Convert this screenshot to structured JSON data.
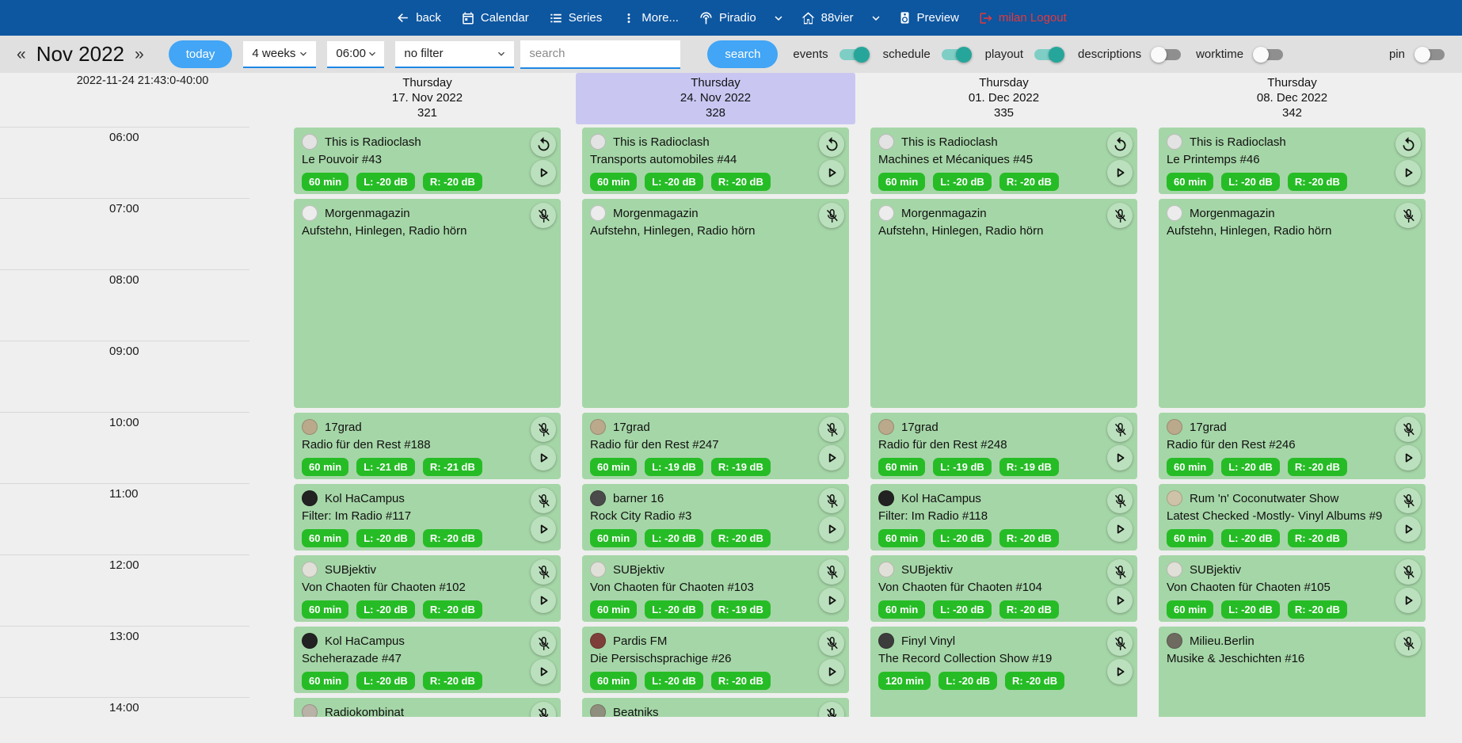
{
  "nav": {
    "back": "back",
    "calendar": "Calendar",
    "series": "Series",
    "more": "More...",
    "piradio": "Piradio",
    "station": "88vier",
    "preview": "Preview",
    "logout": "milan Logout"
  },
  "toolbar": {
    "prev": "«",
    "month": "Nov 2022",
    "next": "»",
    "today": "today",
    "range": "4 weeks",
    "start_time": "06:00",
    "filter": "no filter",
    "search_placeholder": "search",
    "search_button": "search",
    "toggles": [
      {
        "label": "events",
        "on": true
      },
      {
        "label": "schedule",
        "on": true
      },
      {
        "label": "playout",
        "on": true
      },
      {
        "label": "descriptions",
        "on": false
      },
      {
        "label": "worktime",
        "on": false
      },
      {
        "label": "pin",
        "on": false
      }
    ]
  },
  "timebar": {
    "now": "2022-11-24 21:43:0-40:00",
    "hours": [
      "06:00",
      "07:00",
      "08:00",
      "09:00",
      "10:00",
      "11:00",
      "12:00",
      "13:00",
      "14:00"
    ]
  },
  "columns": [
    {
      "day": "Thursday",
      "date": "17. Nov 2022",
      "num": "321",
      "highlight": false,
      "events": [
        {
          "show": "This is Radioclash",
          "title": "Le Pouvoir #43",
          "start": 6,
          "dur": 1,
          "badges": [
            "60 min",
            "L: -20 dB",
            "R: -20 dB"
          ],
          "icons": [
            "replay",
            "play"
          ],
          "avatar": "#e3e3e3"
        },
        {
          "show": "Morgenmagazin",
          "title": "Aufstehn, Hinlegen, Radio hörn",
          "start": 7,
          "dur": 3,
          "badges": [],
          "icons": [
            "mic-off"
          ],
          "avatar": "#ececec"
        },
        {
          "show": "17grad",
          "title": "Radio für den Rest #188",
          "start": 10,
          "dur": 1,
          "badges": [
            "60 min",
            "L: -21 dB",
            "R: -21 dB"
          ],
          "icons": [
            "mic-off",
            "play"
          ],
          "avatar": "#bba98c"
        },
        {
          "show": "Kol HaCampus",
          "title": "Filter: Im Radio #117",
          "start": 11,
          "dur": 1,
          "badges": [
            "60 min",
            "L: -20 dB",
            "R: -20 dB"
          ],
          "icons": [
            "mic-off",
            "play"
          ],
          "avatar": "#222222"
        },
        {
          "show": "SUBjektiv",
          "title": "Von Chaoten für Chaoten #102",
          "start": 12,
          "dur": 1,
          "badges": [
            "60 min",
            "L: -20 dB",
            "R: -20 dB"
          ],
          "icons": [
            "mic-off",
            "play"
          ],
          "avatar": "#e0e0d8"
        },
        {
          "show": "Kol HaCampus",
          "title": "Scheherazade #47",
          "start": 13,
          "dur": 1,
          "badges": [
            "60 min",
            "L: -20 dB",
            "R: -20 dB"
          ],
          "icons": [
            "mic-off",
            "play"
          ],
          "avatar": "#222222"
        },
        {
          "show": "Radiokombinat",
          "title": "",
          "start": 14,
          "dur": 1,
          "badges": [],
          "icons": [
            "mic-off"
          ],
          "avatar": "#b9b2a6"
        }
      ]
    },
    {
      "day": "Thursday",
      "date": "24. Nov 2022",
      "num": "328",
      "highlight": true,
      "events": [
        {
          "show": "This is Radioclash",
          "title": "Transports automobiles #44",
          "start": 6,
          "dur": 1,
          "badges": [
            "60 min",
            "L: -20 dB",
            "R: -20 dB"
          ],
          "icons": [
            "replay",
            "play"
          ],
          "avatar": "#e3e3e3"
        },
        {
          "show": "Morgenmagazin",
          "title": "Aufstehn, Hinlegen, Radio hörn",
          "start": 7,
          "dur": 3,
          "badges": [],
          "icons": [
            "mic-off"
          ],
          "avatar": "#ececec"
        },
        {
          "show": "17grad",
          "title": "Radio für den Rest #247",
          "start": 10,
          "dur": 1,
          "badges": [
            "60 min",
            "L: -19 dB",
            "R: -19 dB"
          ],
          "icons": [
            "mic-off",
            "play"
          ],
          "avatar": "#bba98c"
        },
        {
          "show": "barner 16",
          "title": "Rock City Radio #3",
          "start": 11,
          "dur": 1,
          "badges": [
            "60 min",
            "L: -20 dB",
            "R: -20 dB"
          ],
          "icons": [
            "mic-off",
            "play"
          ],
          "avatar": "#4a4a4a"
        },
        {
          "show": "SUBjektiv",
          "title": "Von Chaoten für Chaoten #103",
          "start": 12,
          "dur": 1,
          "badges": [
            "60 min",
            "L: -20 dB",
            "R: -19 dB"
          ],
          "icons": [
            "mic-off",
            "play"
          ],
          "avatar": "#e0e0d8"
        },
        {
          "show": "Pardis FM",
          "title": "Die Persischsprachige #26",
          "start": 13,
          "dur": 1,
          "badges": [
            "60 min",
            "L: -20 dB",
            "R: -20 dB"
          ],
          "icons": [
            "mic-off",
            "play"
          ],
          "avatar": "#7e3f3a"
        },
        {
          "show": "Beatniks",
          "title": "",
          "start": 14,
          "dur": 1,
          "badges": [],
          "icons": [
            "mic-off"
          ],
          "avatar": "#8f8f7d"
        }
      ]
    },
    {
      "day": "Thursday",
      "date": "01. Dec 2022",
      "num": "335",
      "highlight": false,
      "events": [
        {
          "show": "This is Radioclash",
          "title": "Machines et Mécaniques #45",
          "start": 6,
          "dur": 1,
          "badges": [
            "60 min",
            "L: -20 dB",
            "R: -20 dB"
          ],
          "icons": [
            "replay",
            "play"
          ],
          "avatar": "#e3e3e3"
        },
        {
          "show": "Morgenmagazin",
          "title": "Aufstehn, Hinlegen, Radio hörn",
          "start": 7,
          "dur": 3,
          "badges": [],
          "icons": [
            "mic-off"
          ],
          "avatar": "#ececec"
        },
        {
          "show": "17grad",
          "title": "Radio für den Rest #248",
          "start": 10,
          "dur": 1,
          "badges": [
            "60 min",
            "L: -19 dB",
            "R: -19 dB"
          ],
          "icons": [
            "mic-off",
            "play"
          ],
          "avatar": "#bba98c"
        },
        {
          "show": "Kol HaCampus",
          "title": "Filter: Im Radio #118",
          "start": 11,
          "dur": 1,
          "badges": [
            "60 min",
            "L: -20 dB",
            "R: -20 dB"
          ],
          "icons": [
            "mic-off",
            "play"
          ],
          "avatar": "#222222"
        },
        {
          "show": "SUBjektiv",
          "title": "Von Chaoten für Chaoten #104",
          "start": 12,
          "dur": 1,
          "badges": [
            "60 min",
            "L: -20 dB",
            "R: -20 dB"
          ],
          "icons": [
            "mic-off",
            "play"
          ],
          "avatar": "#e0e0d8"
        },
        {
          "show": "Finyl Vinyl",
          "title": "The Record Collection Show #19",
          "start": 13,
          "dur": 2,
          "badges": [
            "120 min",
            "L: -20 dB",
            "R: -20 dB"
          ],
          "icons": [
            "mic-off",
            "play"
          ],
          "avatar": "#3c3c3c"
        }
      ]
    },
    {
      "day": "Thursday",
      "date": "08. Dec 2022",
      "num": "342",
      "highlight": false,
      "events": [
        {
          "show": "This is Radioclash",
          "title": "Le Printemps #46",
          "start": 6,
          "dur": 1,
          "badges": [
            "60 min",
            "L: -20 dB",
            "R: -20 dB"
          ],
          "icons": [
            "replay",
            "play"
          ],
          "avatar": "#e3e3e3"
        },
        {
          "show": "Morgenmagazin",
          "title": "Aufstehn, Hinlegen, Radio hörn",
          "start": 7,
          "dur": 3,
          "badges": [],
          "icons": [
            "mic-off"
          ],
          "avatar": "#ececec"
        },
        {
          "show": "17grad",
          "title": "Radio für den Rest #246",
          "start": 10,
          "dur": 1,
          "badges": [
            "60 min",
            "L: -20 dB",
            "R: -20 dB"
          ],
          "icons": [
            "mic-off",
            "play"
          ],
          "avatar": "#bba98c"
        },
        {
          "show": "Rum 'n' Coconutwater Show",
          "title": "Latest Checked -Mostly- Vinyl Albums #9",
          "start": 11,
          "dur": 1,
          "badges": [
            "60 min",
            "L: -20 dB",
            "R: -20 dB"
          ],
          "icons": [
            "mic-off",
            "play"
          ],
          "avatar": "#cec3a9"
        },
        {
          "show": "SUBjektiv",
          "title": "Von Chaoten für Chaoten #105",
          "start": 12,
          "dur": 1,
          "badges": [
            "60 min",
            "L: -20 dB",
            "R: -20 dB"
          ],
          "icons": [
            "mic-off",
            "play"
          ],
          "avatar": "#e0e0d8"
        },
        {
          "show": "Milieu.Berlin",
          "title": "Musike & Jeschichten #16",
          "start": 13,
          "dur": 2,
          "badges": [],
          "icons": [
            "mic-off"
          ],
          "avatar": "#6e6a60"
        }
      ]
    }
  ],
  "colors": {
    "nav_bg": "#0d56a0",
    "accent_blue": "#42a5f5",
    "toggle_on": "#26a69a",
    "event_bg": "#a5d6a7",
    "badge_green": "#26bc26",
    "highlight": "#c9c7f2",
    "logout_red": "#e4393c",
    "page_bg": "#efefef"
  }
}
